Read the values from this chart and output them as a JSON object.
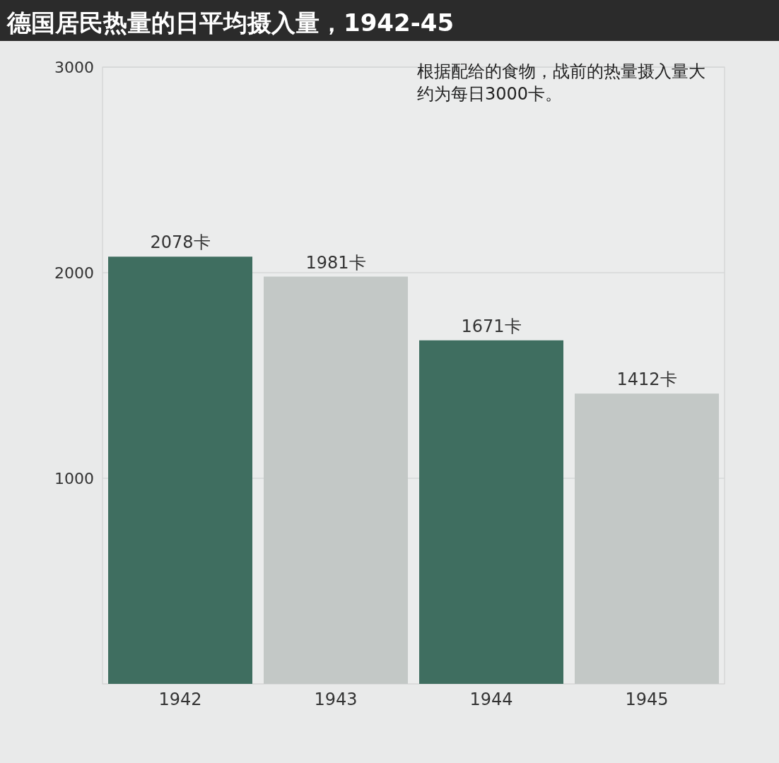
{
  "chart_data": {
    "type": "bar",
    "title": "德国居民热量的日平均摄入量，1942-45",
    "categories": [
      "1942",
      "1943",
      "1944",
      "1945"
    ],
    "values": [
      2078,
      1981,
      1671,
      1412
    ],
    "colors": [
      "#3f6e60",
      "#c3c8c6",
      "#3f6e60",
      "#c3c8c6"
    ],
    "value_labels": [
      "2078卡",
      "1981卡",
      "1671卡",
      "1412卡"
    ],
    "ylim": [
      0,
      3000
    ],
    "yticks": [
      1000,
      2000,
      3000
    ],
    "grid": "y",
    "annotations": [
      "根据配给的食物，战前的热量摄入量大约为每日3000卡。"
    ]
  }
}
